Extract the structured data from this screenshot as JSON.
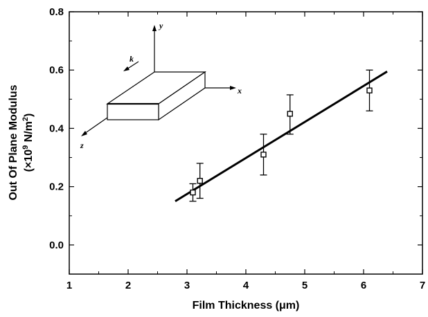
{
  "chart_data": {
    "type": "scatter",
    "xlabel": "Film Thickness (μm)",
    "ylabel": "Out Of Plane Modulus",
    "ylabel_units": {
      "prefix": "(×10",
      "exponent": "9",
      "middle": " N/m",
      "unit_exponent": "2",
      "suffix": ")"
    },
    "xlim": [
      1,
      7
    ],
    "ylim": [
      -0.1,
      0.8
    ],
    "xticks": [
      1,
      2,
      3,
      4,
      5,
      6,
      7
    ],
    "yticks": [
      0.0,
      0.2,
      0.4,
      0.6,
      0.8
    ],
    "xtick_labels": [
      "1",
      "2",
      "3",
      "4",
      "5",
      "6",
      "7"
    ],
    "ytick_labels": [
      "0.0",
      "0.2",
      "0.4",
      "0.6",
      "0.8"
    ],
    "grid": false,
    "series": [
      {
        "marker": "open-square",
        "x": [
          3.1,
          3.22,
          4.3,
          4.75,
          6.1
        ],
        "y": [
          0.18,
          0.22,
          0.31,
          0.45,
          0.53
        ],
        "y_err_low": [
          0.03,
          0.06,
          0.07,
          0.07,
          0.07
        ],
        "y_err_high": [
          0.03,
          0.06,
          0.07,
          0.065,
          0.07
        ]
      }
    ],
    "fit_line": {
      "x": [
        2.8,
        6.4
      ],
      "y": [
        0.15,
        0.595
      ]
    },
    "inset": {
      "axis_labels": {
        "x": "x",
        "y": "y",
        "z": "z",
        "k": "k"
      }
    }
  }
}
